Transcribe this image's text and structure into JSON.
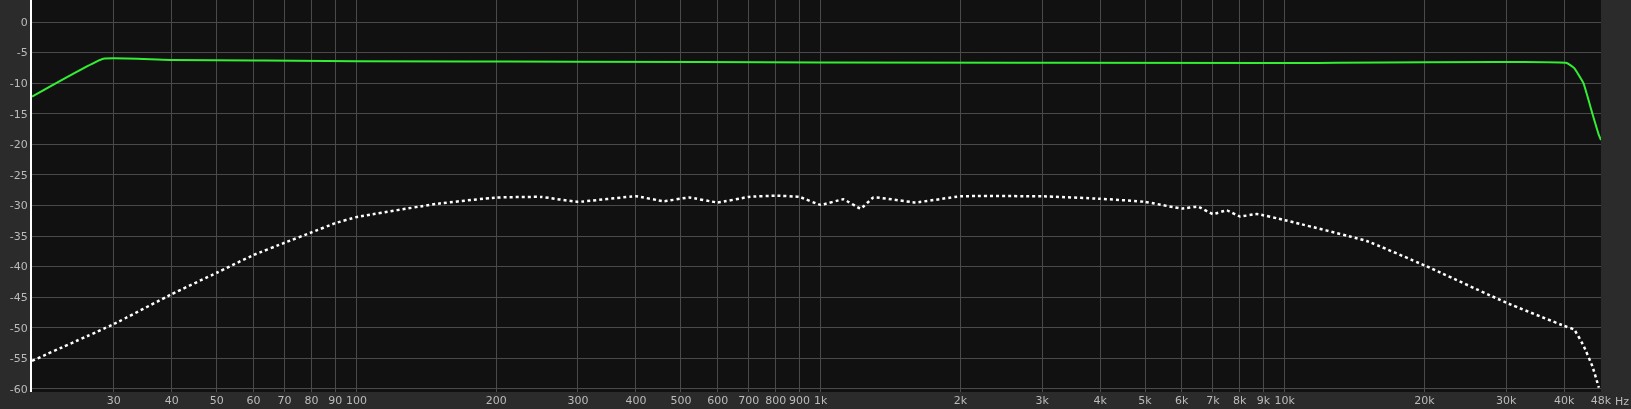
{
  "chart_data": {
    "type": "line",
    "log": "x",
    "grid": true,
    "legend": false,
    "xlim": [
      20,
      48000
    ],
    "ylim": [
      -60.5,
      3.6
    ],
    "xticks": [
      30,
      40,
      50,
      60,
      70,
      80,
      90,
      100,
      200,
      300,
      400,
      500,
      600,
      700,
      800,
      900,
      {
        "value": 1000,
        "label": "1k"
      },
      {
        "value": 2000,
        "label": "2k"
      },
      {
        "value": 3000,
        "label": "3k"
      },
      {
        "value": 4000,
        "label": "4k"
      },
      {
        "value": 5000,
        "label": "5k"
      },
      {
        "value": 6000,
        "label": "6k"
      },
      {
        "value": 7000,
        "label": "7k"
      },
      {
        "value": 8000,
        "label": "8k"
      },
      {
        "value": 9000,
        "label": "9k"
      },
      {
        "value": 10000,
        "label": "10k"
      },
      {
        "value": 20000,
        "label": "20k"
      },
      {
        "value": 30000,
        "label": "30k"
      },
      {
        "value": 40000,
        "label": "40k"
      },
      {
        "value": 48000,
        "label": "48k"
      }
    ],
    "xlabel": "Hz",
    "yticks": [
      0,
      -5,
      -10,
      -15,
      -20,
      -25,
      -30,
      -35,
      -40,
      -45,
      -50,
      -55,
      -60
    ],
    "series": [
      {
        "color": "#33ee33",
        "line_style": "solid",
        "x": [
          20,
          28.5,
          40,
          100,
          300,
          1000,
          10000,
          40500,
          42000,
          44000,
          46000,
          47500,
          48000
        ],
        "values": [
          -12.2,
          -6.0,
          -6.2,
          -6.4,
          -6.5,
          -6.6,
          -6.7,
          -6.7,
          -7.5,
          -10,
          -15,
          -18.5,
          -19.3
        ]
      },
      {
        "color": "#ffffff",
        "line_style": "dotted",
        "x": [
          20,
          30,
          40,
          50,
          60,
          70,
          80,
          90,
          100,
          150,
          200,
          250,
          300,
          400,
          460,
          520,
          600,
          700,
          800,
          900,
          1000,
          1120,
          1220,
          1300,
          1600,
          2000,
          3000,
          4000,
          5000,
          6000,
          6500,
          7000,
          7500,
          8000,
          8700,
          10000,
          15000,
          20000,
          30000,
          40000,
          42000,
          44000,
          46000,
          47500
        ],
        "values": [
          -55.4,
          -49.4,
          -44.5,
          -41,
          -38.1,
          -36.1,
          -34.4,
          -32.9,
          -31.9,
          -29.7,
          -28.7,
          -28.6,
          -29.4,
          -28.5,
          -29.3,
          -28.7,
          -29.5,
          -28.6,
          -28.4,
          -28.6,
          -29.9,
          -29,
          -30.5,
          -28.7,
          -29.5,
          -28.5,
          -28.5,
          -28.9,
          -29.4,
          -30.5,
          -30.2,
          -31.4,
          -30.8,
          -31.8,
          -31.4,
          -32.4,
          -35.8,
          -39.8,
          -45.9,
          -49.7,
          -50.3,
          -52.9,
          -56.3,
          -59.8
        ]
      }
    ]
  }
}
